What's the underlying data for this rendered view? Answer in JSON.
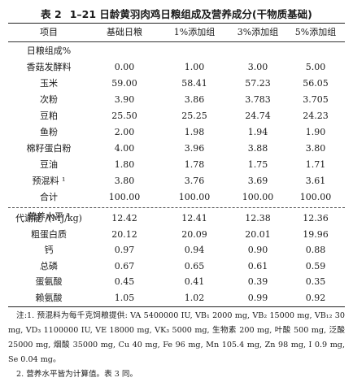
{
  "title": {
    "number": "表 2",
    "text": "1–21 日龄黄羽肉鸡日粮组成及营养成分(干物质基础)"
  },
  "header": [
    "项目",
    "基础日粮",
    "1%添加组",
    "3%添加组",
    "5%添加组"
  ],
  "section1": "日粮组成%",
  "composition": [
    {
      "name": "香菇发酵料",
      "v": [
        "0.00",
        "1.00",
        "3.00",
        "5.00"
      ]
    },
    {
      "name": "玉米",
      "v": [
        "59.00",
        "58.41",
        "57.23",
        "56.05"
      ]
    },
    {
      "name": "次粉",
      "v": [
        "3.90",
        "3.86",
        "3.783",
        "3.705"
      ]
    },
    {
      "name": "豆粕",
      "v": [
        "25.50",
        "25.25",
        "24.74",
        "24.23"
      ]
    },
    {
      "name": "鱼粉",
      "v": [
        "2.00",
        "1.98",
        "1.94",
        "1.90"
      ]
    },
    {
      "name": "棉籽蛋白粉",
      "v": [
        "4.00",
        "3.96",
        "3.88",
        "3.80"
      ]
    },
    {
      "name": "豆油",
      "v": [
        "1.80",
        "1.78",
        "1.75",
        "1.71"
      ]
    },
    {
      "name": "预混料 ¹",
      "v": [
        "3.80",
        "3.76",
        "3.69",
        "3.61"
      ]
    },
    {
      "name": "合计",
      "v": [
        "100.00",
        "100.00",
        "100.00",
        "100.00"
      ]
    }
  ],
  "section2": "营养水平 ²",
  "nutrients": [
    {
      "name": "代谢能 /(MJ/kg)",
      "v": [
        "12.42",
        "12.41",
        "12.38",
        "12.36"
      ]
    },
    {
      "name": "粗蛋白质",
      "v": [
        "20.12",
        "20.09",
        "20.01",
        "19.96"
      ]
    },
    {
      "name": "钙",
      "v": [
        "0.97",
        "0.94",
        "0.90",
        "0.88"
      ]
    },
    {
      "name": "总磷",
      "v": [
        "0.67",
        "0.65",
        "0.61",
        "0.59"
      ]
    },
    {
      "name": "蛋氨酸",
      "v": [
        "0.45",
        "0.41",
        "0.39",
        "0.35"
      ]
    },
    {
      "name": "赖氨酸",
      "v": [
        "1.05",
        "1.02",
        "0.99",
        "0.92"
      ]
    }
  ],
  "notes": {
    "note1": "注:1. 预混料为每千克饲粮提供: VA 5400000 IU, VB₁ 2000 mg, VB₂ 15000 mg, VB₁₂ 30 mg, VD₃ 1100000 IU, VE 18000 mg, VK₃ 5000 mg, 生物素 200 mg, 叶酸 500 mg, 泛酸 25000 mg, 烟酸 35000 mg, Cu 40 mg, Fe 96 mg, Mn 105.4 mg, Zn 98 mg, I 0.9 mg, Se 0.04 mg。",
    "note2": "2. 营养水平皆为计算值。表 3 同。"
  }
}
